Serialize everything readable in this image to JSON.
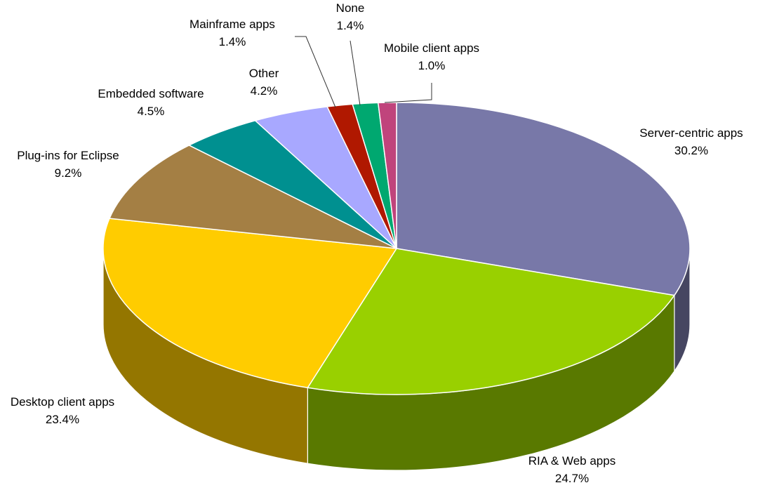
{
  "chart_data": {
    "type": "pie",
    "title": "",
    "style": "3d-tilted",
    "slices": [
      {
        "label": "Server-centric apps",
        "value": 30.2,
        "value_label": "30.2%",
        "color": "#7878A8"
      },
      {
        "label": "RIA & Web apps",
        "value": 24.7,
        "value_label": "24.7%",
        "color": "#99D000"
      },
      {
        "label": "Desktop client apps",
        "value": 23.4,
        "value_label": "23.4%",
        "color": "#FFCC00"
      },
      {
        "label": "Plug-ins for Eclipse",
        "value": 9.2,
        "value_label": "9.2%",
        "color": "#A47F44"
      },
      {
        "label": "Embedded software",
        "value": 4.5,
        "value_label": "4.5%",
        "color": "#009090"
      },
      {
        "label": "Other",
        "value": 4.2,
        "value_label": "4.2%",
        "color": "#A8A8FF"
      },
      {
        "label": "Mainframe apps",
        "value": 1.4,
        "value_label": "1.4%",
        "color": "#B01800"
      },
      {
        "label": "None",
        "value": 1.4,
        "value_label": "1.4%",
        "color": "#00A870"
      },
      {
        "label": "Mobile client apps",
        "value": 1.0,
        "value_label": "1.0%",
        "color": "#C0447C"
      }
    ]
  }
}
